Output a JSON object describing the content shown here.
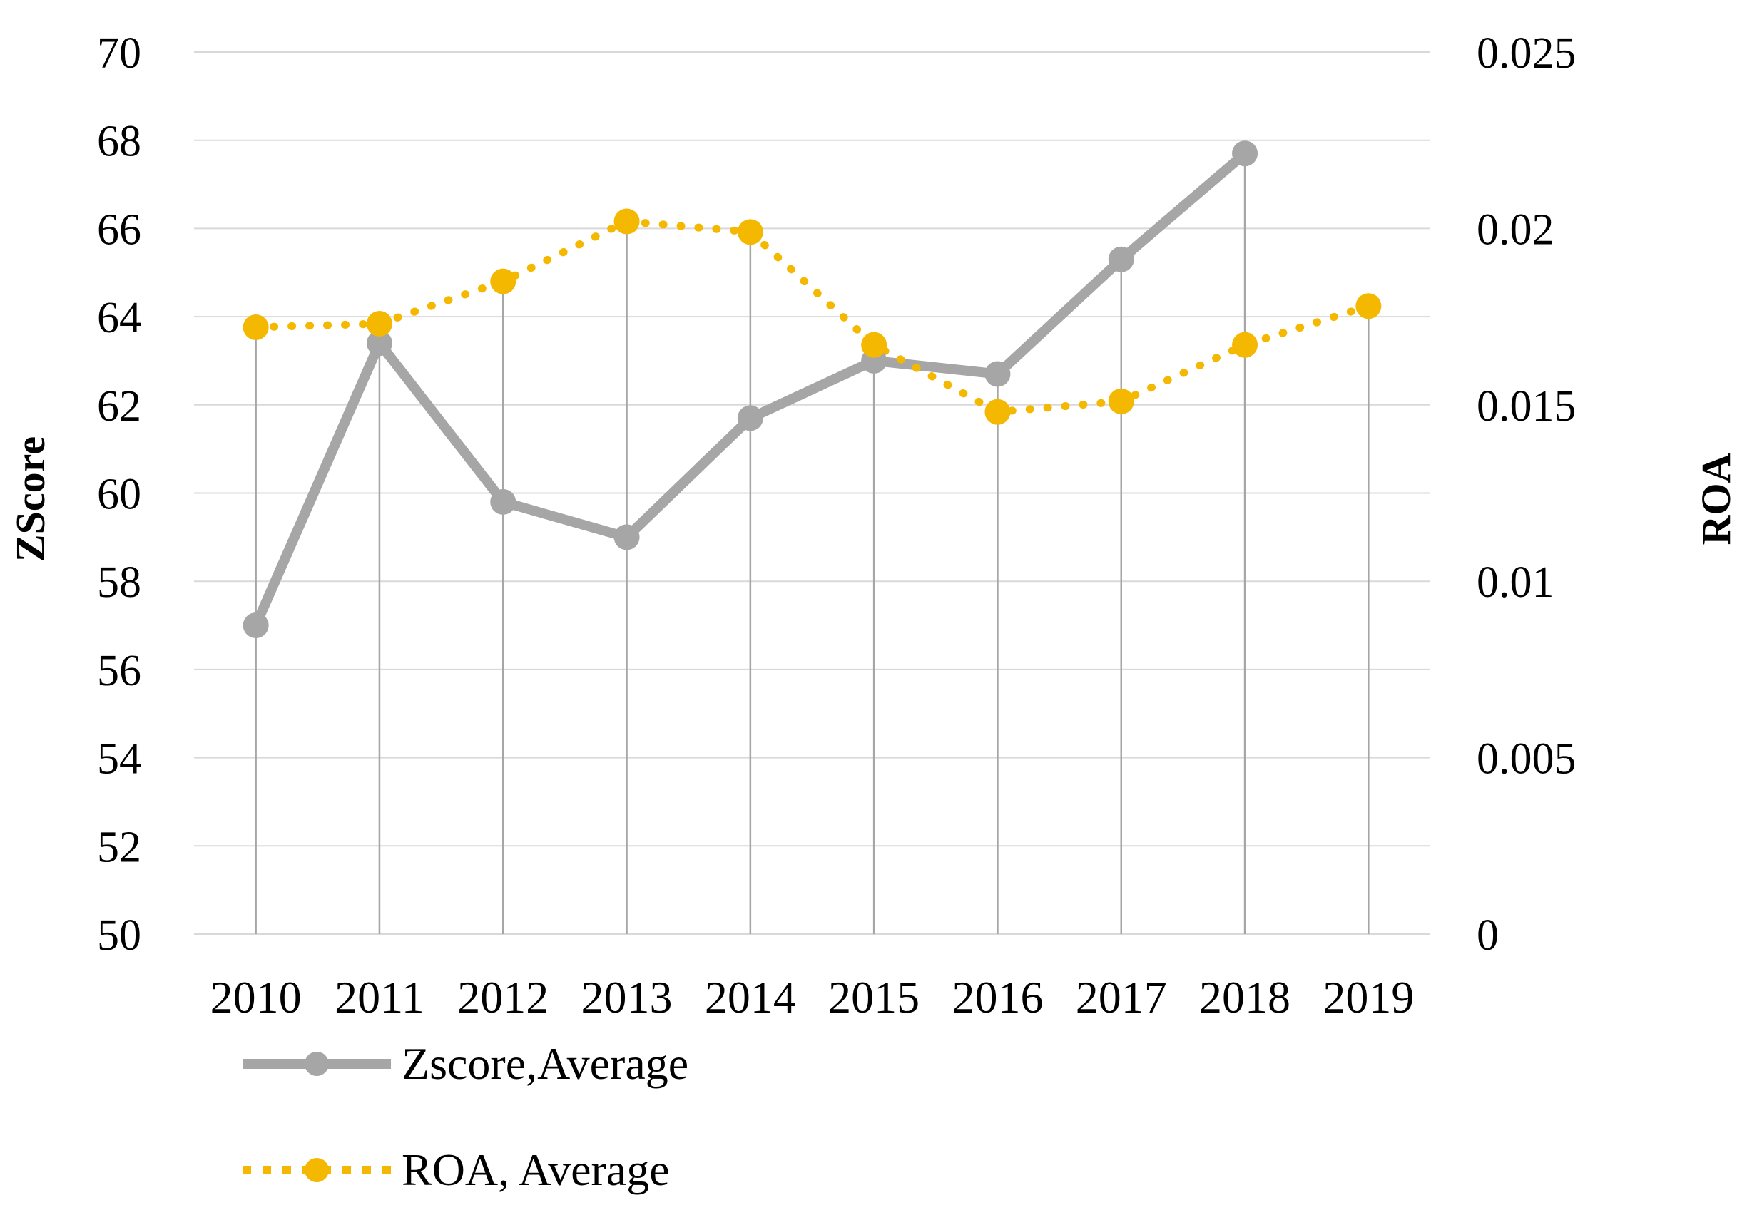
{
  "chart_data": {
    "type": "line",
    "x_label": "",
    "y_left_label": "ZScore",
    "y_right_label": "ROA",
    "categories": [
      "2010",
      "2011",
      "2012",
      "2013",
      "2014",
      "2015",
      "2016",
      "2017",
      "2018",
      "2019"
    ],
    "y_left_range": [
      50,
      70
    ],
    "y_left_ticks": [
      50,
      52,
      54,
      56,
      58,
      60,
      62,
      64,
      66,
      68,
      70
    ],
    "y_left_tick_labels": [
      "50",
      "52",
      "54",
      "56",
      "58",
      "60",
      "62",
      "64",
      "66",
      "68",
      "70"
    ],
    "y_right_range": [
      0,
      0.025
    ],
    "y_right_ticks": [
      0,
      0.005,
      0.01,
      0.015,
      0.02,
      0.025
    ],
    "y_right_tick_labels": [
      "0",
      "0.005",
      "0.01",
      "0.015",
      "0.02",
      "0.025"
    ],
    "grid": true,
    "legend_position": "bottom-left",
    "series": [
      {
        "name": "Zscore,Average",
        "axis": "left",
        "style": "solid",
        "color": "#a6a6a6",
        "values": [
          57.0,
          63.4,
          59.8,
          59.0,
          61.7,
          63.0,
          62.7,
          65.3,
          67.7,
          null
        ]
      },
      {
        "name": "ROA, Average",
        "axis": "right",
        "style": "dotted",
        "color": "#f5b800",
        "values": [
          0.0172,
          0.0173,
          0.0185,
          0.0202,
          0.0199,
          0.0167,
          0.0148,
          0.0151,
          0.0167,
          0.0178
        ]
      }
    ],
    "colors": {
      "gridline": "#d9d9d9",
      "droplines": "#a6a6a6",
      "axis_text": "#000000"
    }
  }
}
